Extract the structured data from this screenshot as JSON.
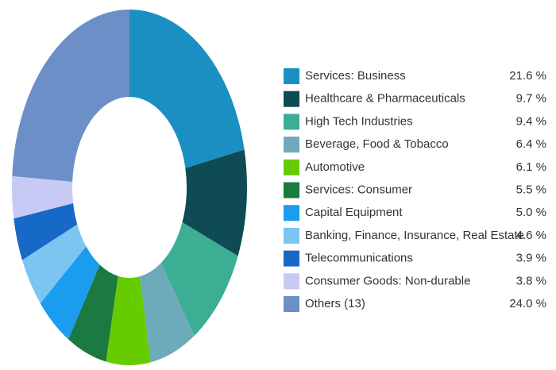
{
  "chart_data": {
    "type": "donut",
    "categories": [
      "Services: Business",
      "Healthcare & Pharmaceuticals",
      "High Tech Industries",
      "Beverage, Food & Tobacco",
      "Automotive",
      "Services: Consumer",
      "Capital Equipment",
      "Banking, Finance, Insurance, Real Estate",
      "Telecommunications",
      "Consumer Goods: Non-durable",
      "Others (13)"
    ],
    "values": [
      21.6,
      9.7,
      9.4,
      6.4,
      6.1,
      5.5,
      5.0,
      4.6,
      3.9,
      3.8,
      24.0
    ],
    "value_labels": [
      "21.6 %",
      "9.7 %",
      "9.4 %",
      "6.4 %",
      "6.1 %",
      "5.5 %",
      "5.0 %",
      "4.6 %",
      "3.9 %",
      "3.8 %",
      "24.0 %"
    ],
    "colors": [
      "#1b8fc2",
      "#0e4b54",
      "#3bae94",
      "#6eabba",
      "#66cc00",
      "#1b7a3f",
      "#1a9cef",
      "#7cc5f0",
      "#1669c7",
      "#c6caf5",
      "#6c8fc7"
    ]
  }
}
